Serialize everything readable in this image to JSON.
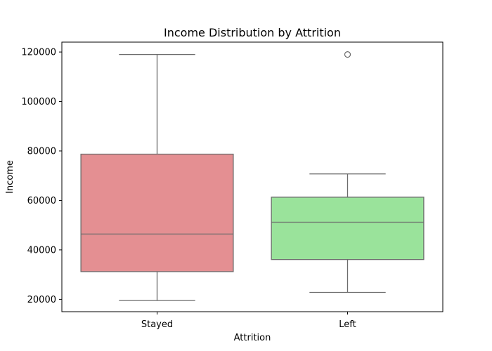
{
  "chart_data": {
    "type": "boxplot",
    "title": "Income Distribution by Attrition",
    "xlabel": "Attrition",
    "ylabel": "Income",
    "ylim": [
      15000,
      124000
    ],
    "yticks": [
      20000,
      40000,
      60000,
      80000,
      100000,
      120000
    ],
    "ytick_labels": [
      "20000",
      "40000",
      "60000",
      "80000",
      "100000",
      "120000"
    ],
    "grid": false,
    "categories": [
      "Stayed",
      "Left"
    ],
    "boxes": [
      {
        "category": "Stayed",
        "whisker_low": 19500,
        "q1": 31200,
        "median": 46400,
        "q3": 78700,
        "whisker_high": 119000,
        "outliers": [],
        "color": "#e48f92"
      },
      {
        "category": "Left",
        "whisker_low": 22800,
        "q1": 36100,
        "median": 51200,
        "q3": 61300,
        "whisker_high": 70700,
        "outliers": [
          119000
        ],
        "color": "#9ae39b"
      }
    ],
    "line_color": "#6b6b6b"
  }
}
